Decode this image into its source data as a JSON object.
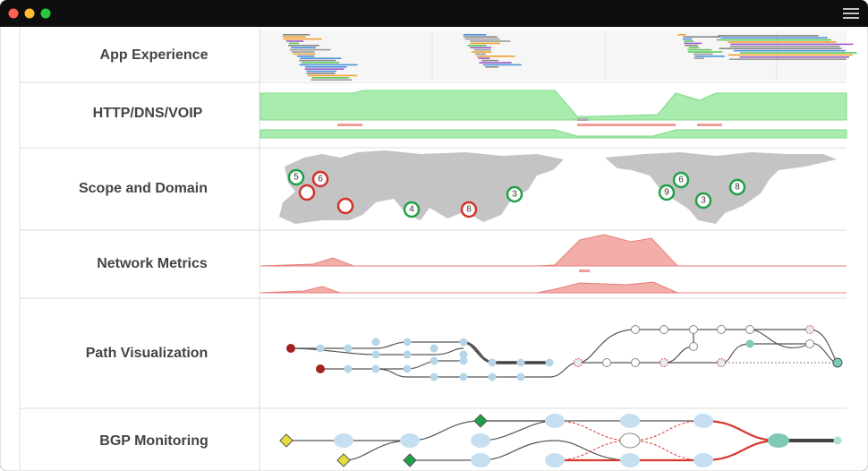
{
  "rows": [
    {
      "label": "App Experience"
    },
    {
      "label": "HTTP/DNS/VOIP"
    },
    {
      "label": "Scope and Domain"
    },
    {
      "label": "Network Metrics"
    },
    {
      "label": "Path Visualization"
    },
    {
      "label": "BGP Monitoring"
    }
  ],
  "map": {
    "markers": [
      {
        "label": "5"
      },
      {
        "label": "6"
      },
      {
        "label": "3"
      },
      {
        "label": "4"
      },
      {
        "label": "8"
      },
      {
        "label": "9"
      },
      {
        "label": "6"
      },
      {
        "label": "3"
      },
      {
        "label": "8"
      }
    ]
  }
}
